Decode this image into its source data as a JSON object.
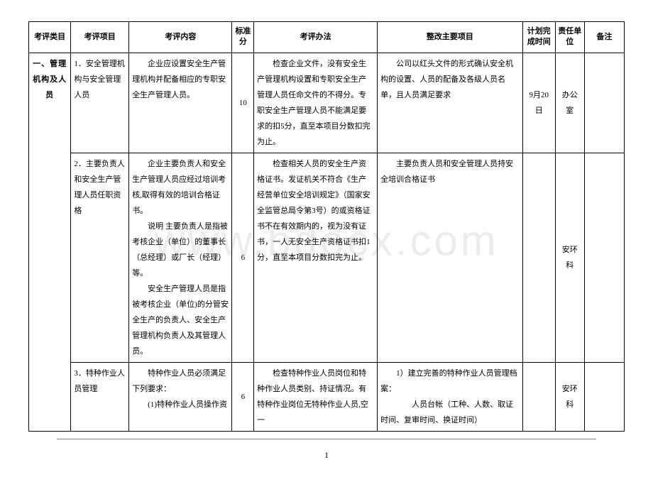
{
  "watermark": "www.bdocx.com",
  "headers": {
    "category": "考评类目",
    "item": "考评项目",
    "content": "考评内容",
    "score": "标准分",
    "method": "考评办法",
    "rectify": "整改主要项目",
    "time": "计划完成时间",
    "unit": "责任单位",
    "note": "备注"
  },
  "rows": [
    {
      "category": "一、管理机构及人员",
      "item": "1．安全管理机构与安全管理人员",
      "content": "　　企业应设置安全生产管理机构并配备相应的专职安全生产管理人员。",
      "score": "10",
      "method": "　　检查企业文件，没有安全生产管理机构设置和专职安全生产管理人员任命文件的不得分。专职安全生产管理人员不能满足要求的扣5分，直至本项目分数扣完为止。",
      "rectify": "　　公司以红头文件的形式确认安全机构的设置、人员的配备及各级人员名单，且人员满足要求",
      "time": "9月20日",
      "unit": "办公室",
      "note": ""
    },
    {
      "category": "",
      "item": "2．主要负责人和安全生产管理人员任职资格",
      "content": "　　企业主要负责人和安全生产管理人员应经过培训考核,取得有效的培训合格证书。\n　　说明 主要负责人是指被考核企业（单位）的董事长（总经理）或厂长（经理）等。\n　　安全生产管理人员是指被考核企业（单位)的分管安全生产的负责人、安全生产管理机构负责人及其管理人员。",
      "score": "6",
      "method": "　　检查相关人员的安全生产资格证书。发证机关不符合《生产经营单位安全培训规定》（国家安全监管总局令第3号）的或资格证书不在有效期内的，视为没有证书，一人无安全生产资格证书扣1分，直至本项目分数扣完为止。",
      "rectify": "　　主要负责人员和安全管理人员持安全培训合格证书",
      "time": "",
      "unit": "安环科",
      "note": ""
    },
    {
      "category": "",
      "item": "3．特种作业人员管理",
      "content": "　　特种作业人员必须满足下列要求：\n　　(1)特种作业人员操作资",
      "score": "6",
      "method": "　　检查特种作业人员岗位和特种作业人员类别、持证情况。有特种作业岗位无特种作业人员,空一",
      "rectify": "　　1）建立完善的特种作业人员管理档案：\n　　　　人员台帐（工种、人数、取证时间、复审时间、换证时间）",
      "time": "",
      "unit": "安环科",
      "note": ""
    }
  ],
  "pageNumber": "1"
}
